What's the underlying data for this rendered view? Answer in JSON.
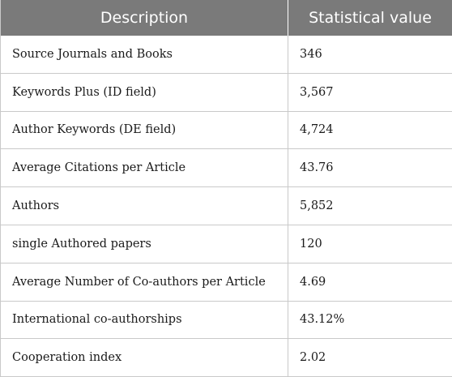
{
  "table": {
    "headers": [
      "Description",
      "Statistical value"
    ],
    "rows": [
      {
        "description": "Source Journals and Books",
        "value": "346"
      },
      {
        "description": "Keywords Plus (ID field)",
        "value": "3,567"
      },
      {
        "description": "Author Keywords (DE field)",
        "value": "4,724"
      },
      {
        "description": "Average Citations per Article",
        "value": "43.76"
      },
      {
        "description": "Authors",
        "value": "5,852"
      },
      {
        "description": "single Authored papers",
        "value": "120"
      },
      {
        "description": "Average Number of Co-authors per Article",
        "value": "4.69"
      },
      {
        "description": "International co-authorships",
        "value": "43.12%"
      },
      {
        "description": "Cooperation index",
        "value": "2.02"
      }
    ]
  },
  "colors": {
    "header_background": "#7a7a7a",
    "header_text": "#ffffff",
    "grid_lines": "#c9c9c9"
  }
}
